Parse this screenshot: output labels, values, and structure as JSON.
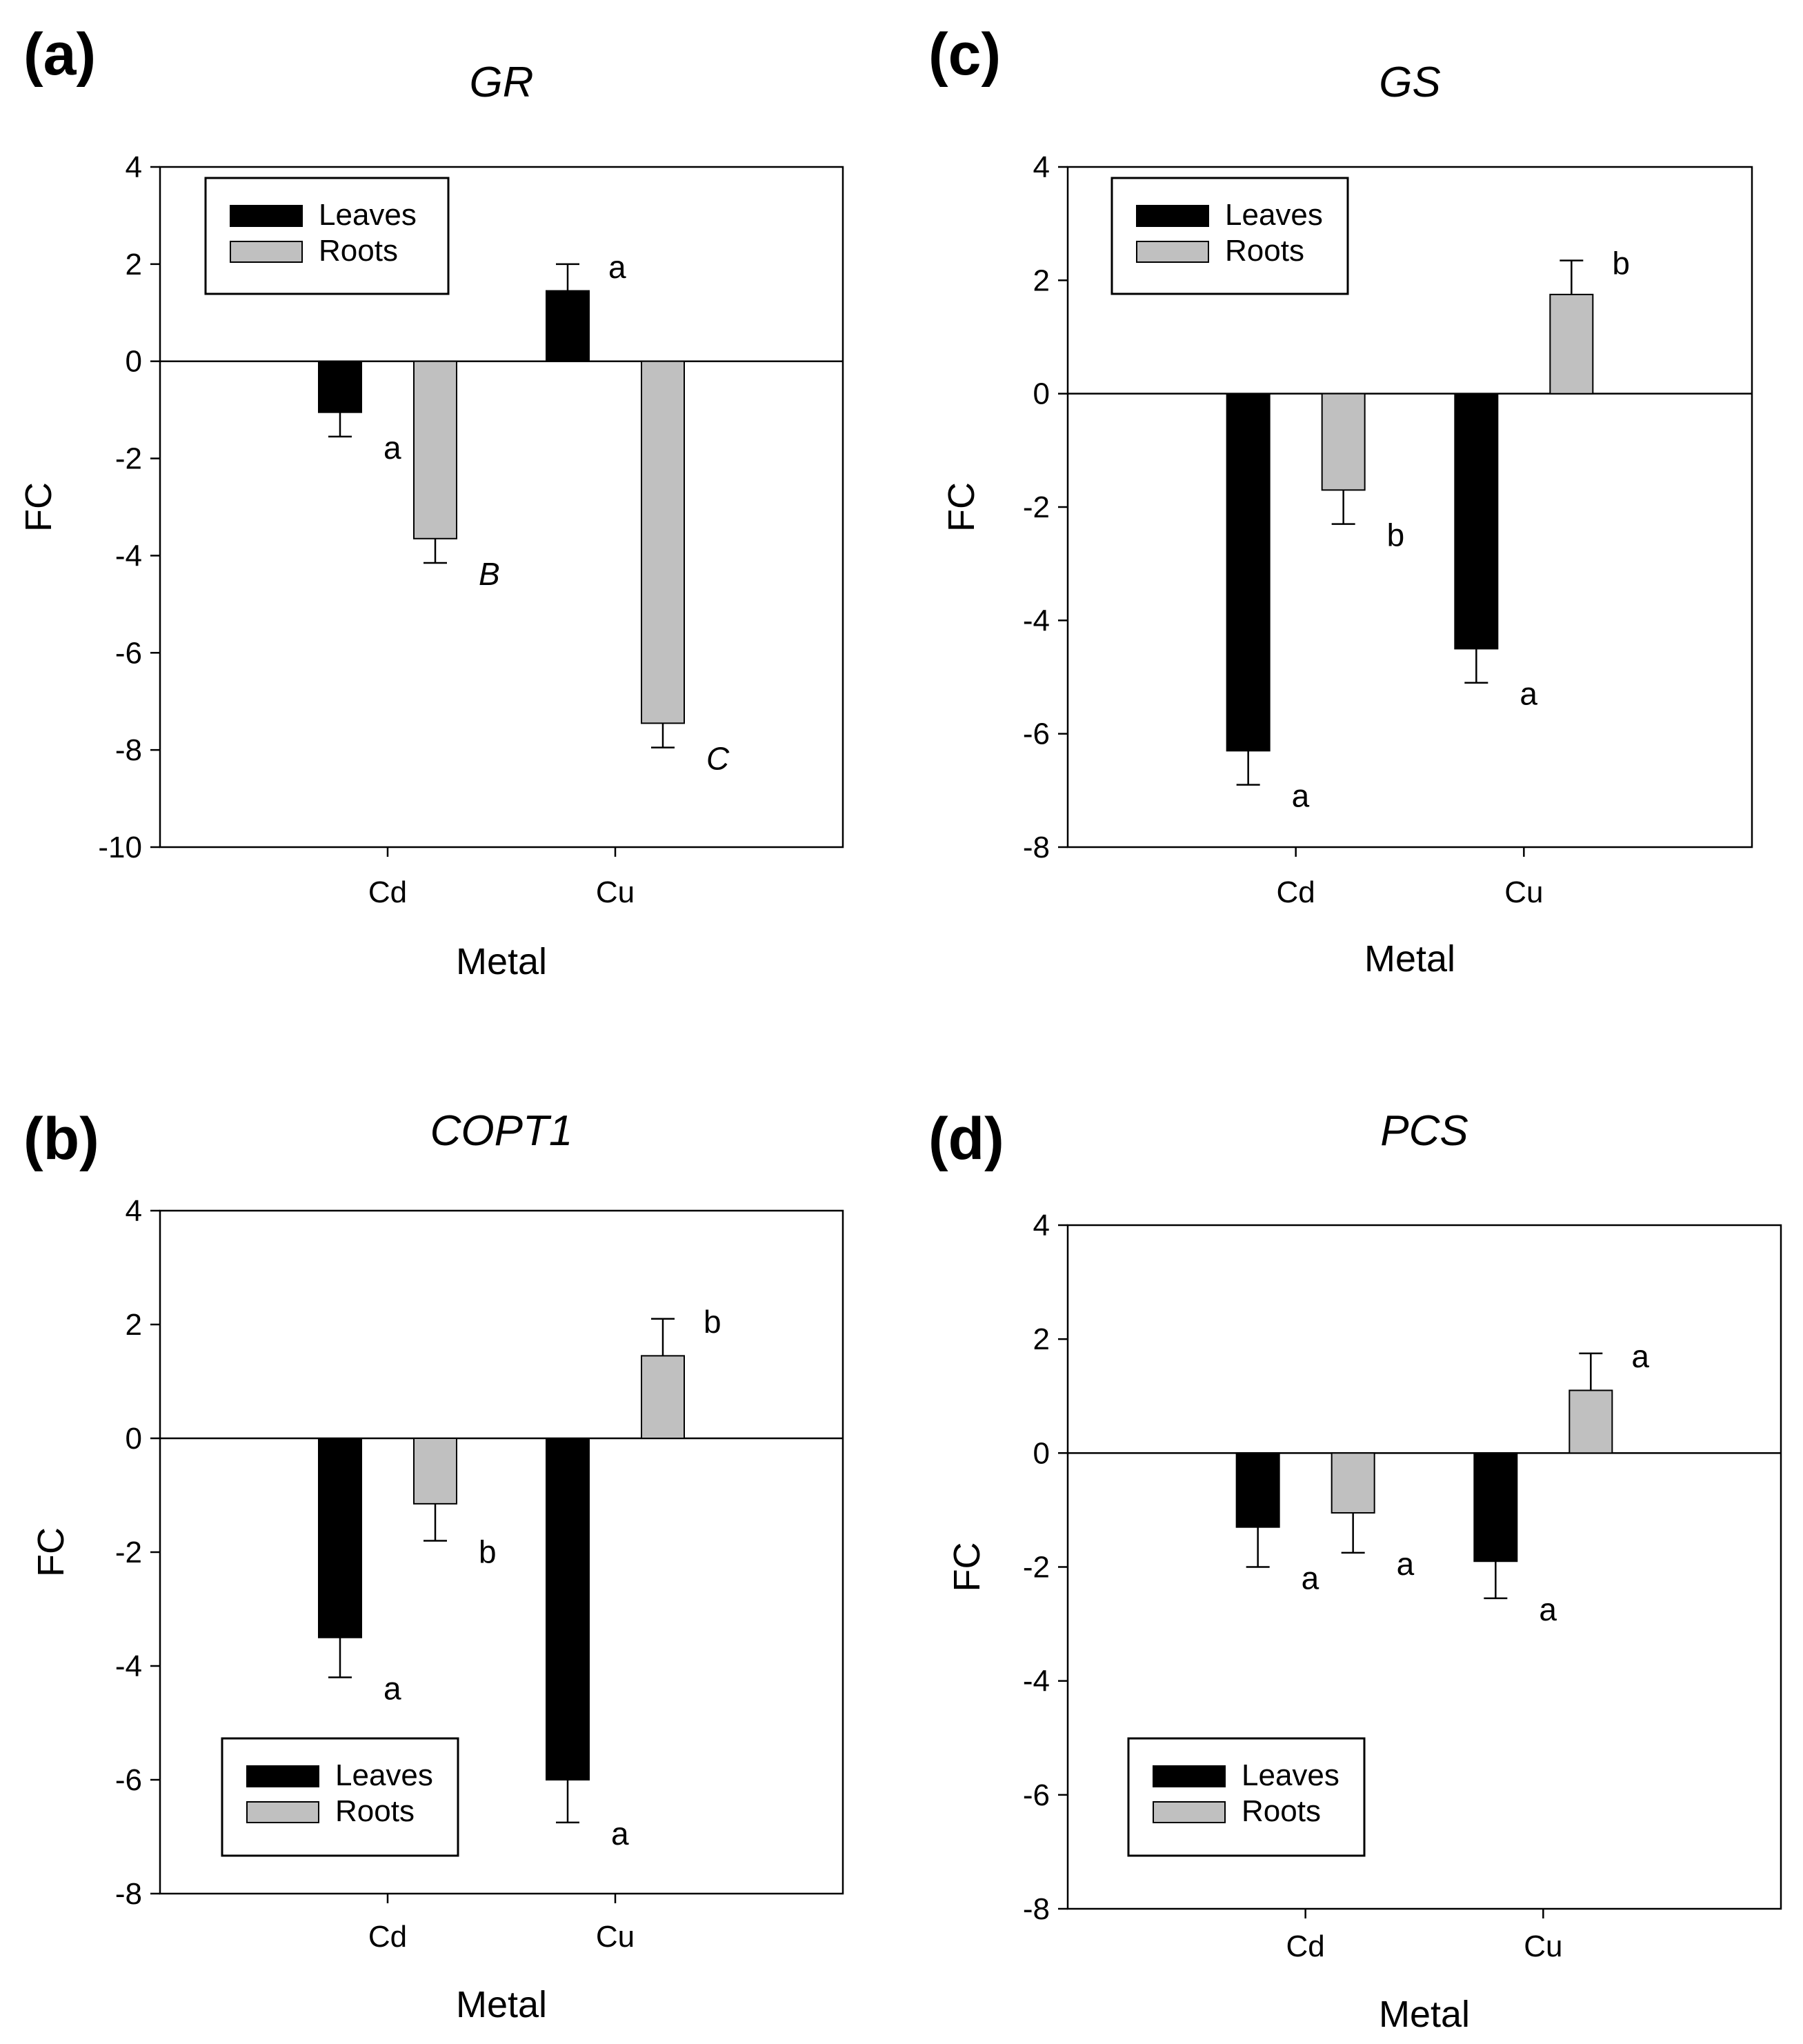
{
  "chart_data": [
    {
      "panel": "(a)",
      "type": "bar",
      "title": "GR",
      "xlabel": "Metal",
      "ylabel": "FC",
      "categories": [
        "Cd",
        "Cu"
      ],
      "ylim": [
        -10,
        4
      ],
      "yticks": [
        4,
        2,
        0,
        -2,
        -4,
        -6,
        -8,
        -10
      ],
      "legend": {
        "position": "top-left",
        "entries": [
          "Leaves",
          "Roots"
        ]
      },
      "series": [
        {
          "name": "Leaves",
          "color": "#000000",
          "values": [
            -1.05,
            1.45
          ],
          "errors": [
            0.5,
            0.55
          ],
          "labels": [
            "a",
            "a"
          ],
          "label_styles": [
            "normal",
            "normal"
          ]
        },
        {
          "name": "Roots",
          "color": "#c0c0c0",
          "values": [
            -3.65,
            -7.45
          ],
          "errors": [
            0.5,
            0.5
          ],
          "labels": [
            "B",
            "C"
          ],
          "label_styles": [
            "italic",
            "italic"
          ]
        }
      ]
    },
    {
      "panel": "(b)",
      "type": "bar",
      "title": "COPT1",
      "xlabel": "Metal",
      "ylabel": "FC",
      "categories": [
        "Cd",
        "Cu"
      ],
      "ylim": [
        -8,
        4
      ],
      "yticks": [
        4,
        2,
        0,
        -2,
        -4,
        -6,
        -8
      ],
      "legend": {
        "position": "bottom-left",
        "entries": [
          "Leaves",
          "Roots"
        ]
      },
      "series": [
        {
          "name": "Leaves",
          "color": "#000000",
          "values": [
            -3.5,
            -6.0
          ],
          "errors": [
            0.7,
            0.75
          ],
          "labels": [
            "a",
            "a"
          ],
          "label_styles": [
            "normal",
            "normal"
          ]
        },
        {
          "name": "Roots",
          "color": "#c0c0c0",
          "values": [
            -1.15,
            1.45
          ],
          "errors": [
            0.65,
            0.65
          ],
          "labels": [
            "b",
            "b"
          ],
          "label_styles": [
            "normal",
            "normal"
          ]
        }
      ]
    },
    {
      "panel": "(c)",
      "type": "bar",
      "title": "GS",
      "xlabel": "Metal",
      "ylabel": "FC",
      "categories": [
        "Cd",
        "Cu"
      ],
      "ylim": [
        -8,
        4
      ],
      "yticks": [
        4,
        2,
        0,
        -2,
        -4,
        -6,
        -8
      ],
      "legend": {
        "position": "top-left",
        "entries": [
          "Leaves",
          "Roots"
        ]
      },
      "series": [
        {
          "name": "Leaves",
          "color": "#000000",
          "values": [
            -6.3,
            -4.5
          ],
          "errors": [
            0.6,
            0.6
          ],
          "labels": [
            "a",
            "a"
          ],
          "label_styles": [
            "normal",
            "normal"
          ]
        },
        {
          "name": "Roots",
          "color": "#c0c0c0",
          "values": [
            -1.7,
            1.75
          ],
          "errors": [
            0.6,
            0.6
          ],
          "labels": [
            "b",
            "b"
          ],
          "label_styles": [
            "normal",
            "normal"
          ]
        }
      ]
    },
    {
      "panel": "(d)",
      "type": "bar",
      "title": "PCS",
      "xlabel": "Metal",
      "ylabel": "FC",
      "categories": [
        "Cd",
        "Cu"
      ],
      "ylim": [
        -8,
        4
      ],
      "yticks": [
        4,
        2,
        0,
        -2,
        -4,
        -6,
        -8
      ],
      "legend": {
        "position": "bottom-left",
        "entries": [
          "Leaves",
          "Roots"
        ]
      },
      "series": [
        {
          "name": "Leaves",
          "color": "#000000",
          "values": [
            -1.3,
            -1.9
          ],
          "errors": [
            0.7,
            0.65
          ],
          "labels": [
            "a",
            "a"
          ],
          "label_styles": [
            "normal",
            "normal"
          ]
        },
        {
          "name": "Roots",
          "color": "#c0c0c0",
          "values": [
            -1.05,
            1.1
          ],
          "errors": [
            0.7,
            0.65
          ],
          "labels": [
            "a",
            "a"
          ],
          "label_styles": [
            "normal",
            "normal"
          ]
        }
      ]
    }
  ]
}
